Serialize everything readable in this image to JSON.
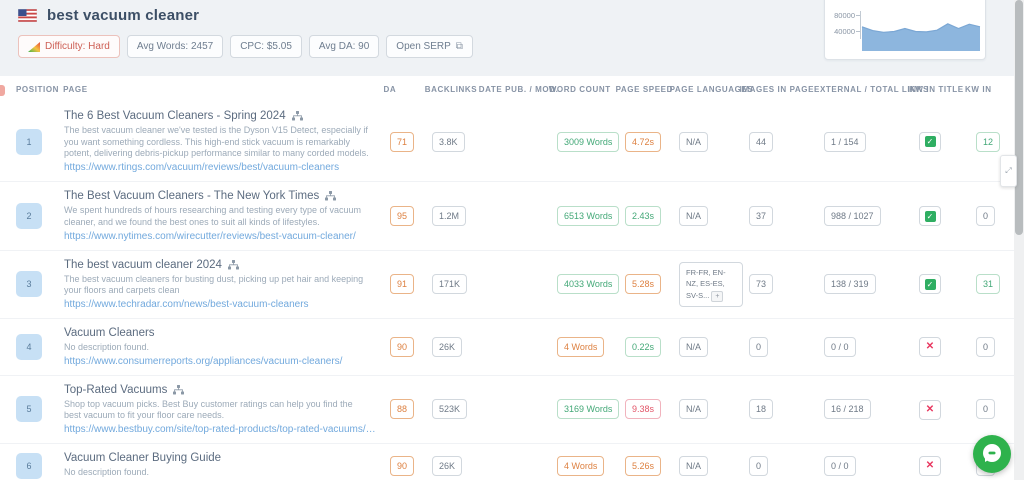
{
  "header": {
    "keyword": "best vacuum cleaner",
    "country_flag": "us",
    "difficulty_label": "Difficulty: Hard",
    "avg_words_label": "Avg Words: 2457",
    "cpc_label": "CPC: $5.05",
    "avg_da_label": "Avg DA: 90",
    "open_serp_label": "Open SERP",
    "open_serp_icon": "⧉"
  },
  "colors": {
    "good": "#43a877",
    "warn": "#dd8040",
    "bad": "#e25568",
    "chart_fill": "#8db6de",
    "chart_stroke": "#7ba7d4",
    "chat_green": "#2eb24c",
    "position_badge": "#c7e0f5"
  },
  "trend_chart": {
    "type": "area",
    "values": [
      57000,
      48000,
      44000,
      46000,
      53000,
      46000,
      45000,
      49000,
      64000,
      53000,
      63000,
      57000
    ],
    "ylim": [
      0,
      80000
    ],
    "yticks": [
      80000,
      40000
    ],
    "ytick_labels": [
      "80000",
      "40000"
    ],
    "legend": "none",
    "grid": false
  },
  "widgets": {
    "resize_handle_icon": "⤢"
  },
  "table": {
    "columns": [
      "POSITION",
      "PAGE",
      "DA",
      "BACKLINKS",
      "DATE PUB. / MOD.",
      "WORD COUNT",
      "PAGE SPEED",
      "PAGE LANGUAGES",
      "IMAGES IN PAGE",
      "EXTERNAL / TOTAL LINKS",
      "KW IN TITLE",
      "KW IN"
    ],
    "rows": [
      {
        "position": "1",
        "title": "The 6 Best Vacuum Cleaners - Spring 2024",
        "sitemap": true,
        "description": "The best vacuum cleaner we've tested is the Dyson V15 Detect, especially if you want something cordless. This high-end stick vacuum is remarkably potent, delivering debris-pickup performance similar to many corded models.",
        "url": "https://www.rtings.com/vacuum/reviews/best/vacuum-cleaners",
        "da": {
          "text": "71",
          "status": "warn"
        },
        "backlinks": {
          "text": "3.8K",
          "status": "neutral"
        },
        "date": "",
        "word_count": {
          "text": "3009 Words",
          "status": "good"
        },
        "page_speed": {
          "text": "4.72s",
          "status": "warn"
        },
        "languages": {
          "text": "N/A",
          "status": "neutral",
          "multi": false,
          "more": "+"
        },
        "images": {
          "text": "44",
          "status": "neutral"
        },
        "ext_total": {
          "text": "1 / 154",
          "status": "neutral"
        },
        "kw_in_title": true,
        "kw_in": {
          "text": "12",
          "status": "good"
        }
      },
      {
        "position": "2",
        "title": "The Best Vacuum Cleaners - The New York Times",
        "sitemap": true,
        "description": "We spent hundreds of hours researching and testing every type of vacuum cleaner, and we found the best ones to suit all kinds of lifestyles.",
        "url": "https://www.nytimes.com/wirecutter/reviews/best-vacuum-cleaner/",
        "da": {
          "text": "95",
          "status": "warn"
        },
        "backlinks": {
          "text": "1.2M",
          "status": "neutral"
        },
        "date": "",
        "word_count": {
          "text": "6513 Words",
          "status": "good"
        },
        "page_speed": {
          "text": "2.43s",
          "status": "good"
        },
        "languages": {
          "text": "N/A",
          "status": "neutral",
          "multi": false,
          "more": "+"
        },
        "images": {
          "text": "37",
          "status": "neutral"
        },
        "ext_total": {
          "text": "988 / 1027",
          "status": "neutral"
        },
        "kw_in_title": true,
        "kw_in": {
          "text": "0",
          "status": "neutral"
        }
      },
      {
        "position": "3",
        "title": "The best vacuum cleaner 2024",
        "sitemap": true,
        "description": "The best vacuum cleaners for busting dust, picking up pet hair and keeping your floors and carpets clean",
        "url": "https://www.techradar.com/news/best-vacuum-cleaners",
        "da": {
          "text": "91",
          "status": "warn"
        },
        "backlinks": {
          "text": "171K",
          "status": "neutral"
        },
        "date": "",
        "word_count": {
          "text": "4033 Words",
          "status": "good"
        },
        "page_speed": {
          "text": "5.28s",
          "status": "warn"
        },
        "languages": {
          "text": "FR-FR, EN-NZ, ES-ES, SV-S...",
          "status": "neutral",
          "multi": true,
          "more": "+"
        },
        "images": {
          "text": "73",
          "status": "neutral"
        },
        "ext_total": {
          "text": "138 / 319",
          "status": "neutral"
        },
        "kw_in_title": true,
        "kw_in": {
          "text": "31",
          "status": "good"
        }
      },
      {
        "position": "4",
        "title": "Vacuum Cleaners",
        "sitemap": false,
        "description": "No description found.",
        "url": "https://www.consumerreports.org/appliances/vacuum-cleaners/",
        "da": {
          "text": "90",
          "status": "warn"
        },
        "backlinks": {
          "text": "26K",
          "status": "neutral"
        },
        "date": "",
        "word_count": {
          "text": "4 Words",
          "status": "warn"
        },
        "page_speed": {
          "text": "0.22s",
          "status": "good"
        },
        "languages": {
          "text": "N/A",
          "status": "neutral",
          "multi": false,
          "more": "+"
        },
        "images": {
          "text": "0",
          "status": "neutral"
        },
        "ext_total": {
          "text": "0 / 0",
          "status": "neutral"
        },
        "kw_in_title": false,
        "kw_in": {
          "text": "0",
          "status": "neutral"
        }
      },
      {
        "position": "5",
        "title": "Top-Rated Vacuums",
        "sitemap": true,
        "description": "Shop top vacuum picks. Best Buy customer ratings can help you find the best vacuum to fit your floor care needs.",
        "url": "https://www.bestbuy.com/site/top-rated-products/top-rated-vacuums/pcmc...",
        "da": {
          "text": "88",
          "status": "warn"
        },
        "backlinks": {
          "text": "523K",
          "status": "neutral"
        },
        "date": "",
        "word_count": {
          "text": "3169 Words",
          "status": "good"
        },
        "page_speed": {
          "text": "9.38s",
          "status": "bad"
        },
        "languages": {
          "text": "N/A",
          "status": "neutral",
          "multi": false,
          "more": "+"
        },
        "images": {
          "text": "18",
          "status": "neutral"
        },
        "ext_total": {
          "text": "16 / 218",
          "status": "neutral"
        },
        "kw_in_title": false,
        "kw_in": {
          "text": "0",
          "status": "neutral"
        }
      },
      {
        "position": "6",
        "title": "Vacuum Cleaner Buying Guide",
        "sitemap": false,
        "description": "No description found.",
        "url": "",
        "da": {
          "text": "90",
          "status": "warn"
        },
        "backlinks": {
          "text": "26K",
          "status": "neutral"
        },
        "date": "",
        "word_count": {
          "text": "4 Words",
          "status": "warn"
        },
        "page_speed": {
          "text": "5.26s",
          "status": "warn"
        },
        "languages": {
          "text": "N/A",
          "status": "neutral",
          "multi": false,
          "more": "+"
        },
        "images": {
          "text": "0",
          "status": "neutral"
        },
        "ext_total": {
          "text": "0 / 0",
          "status": "neutral"
        },
        "kw_in_title": false,
        "kw_in": {
          "text": "0",
          "status": "neutral"
        }
      }
    ]
  }
}
